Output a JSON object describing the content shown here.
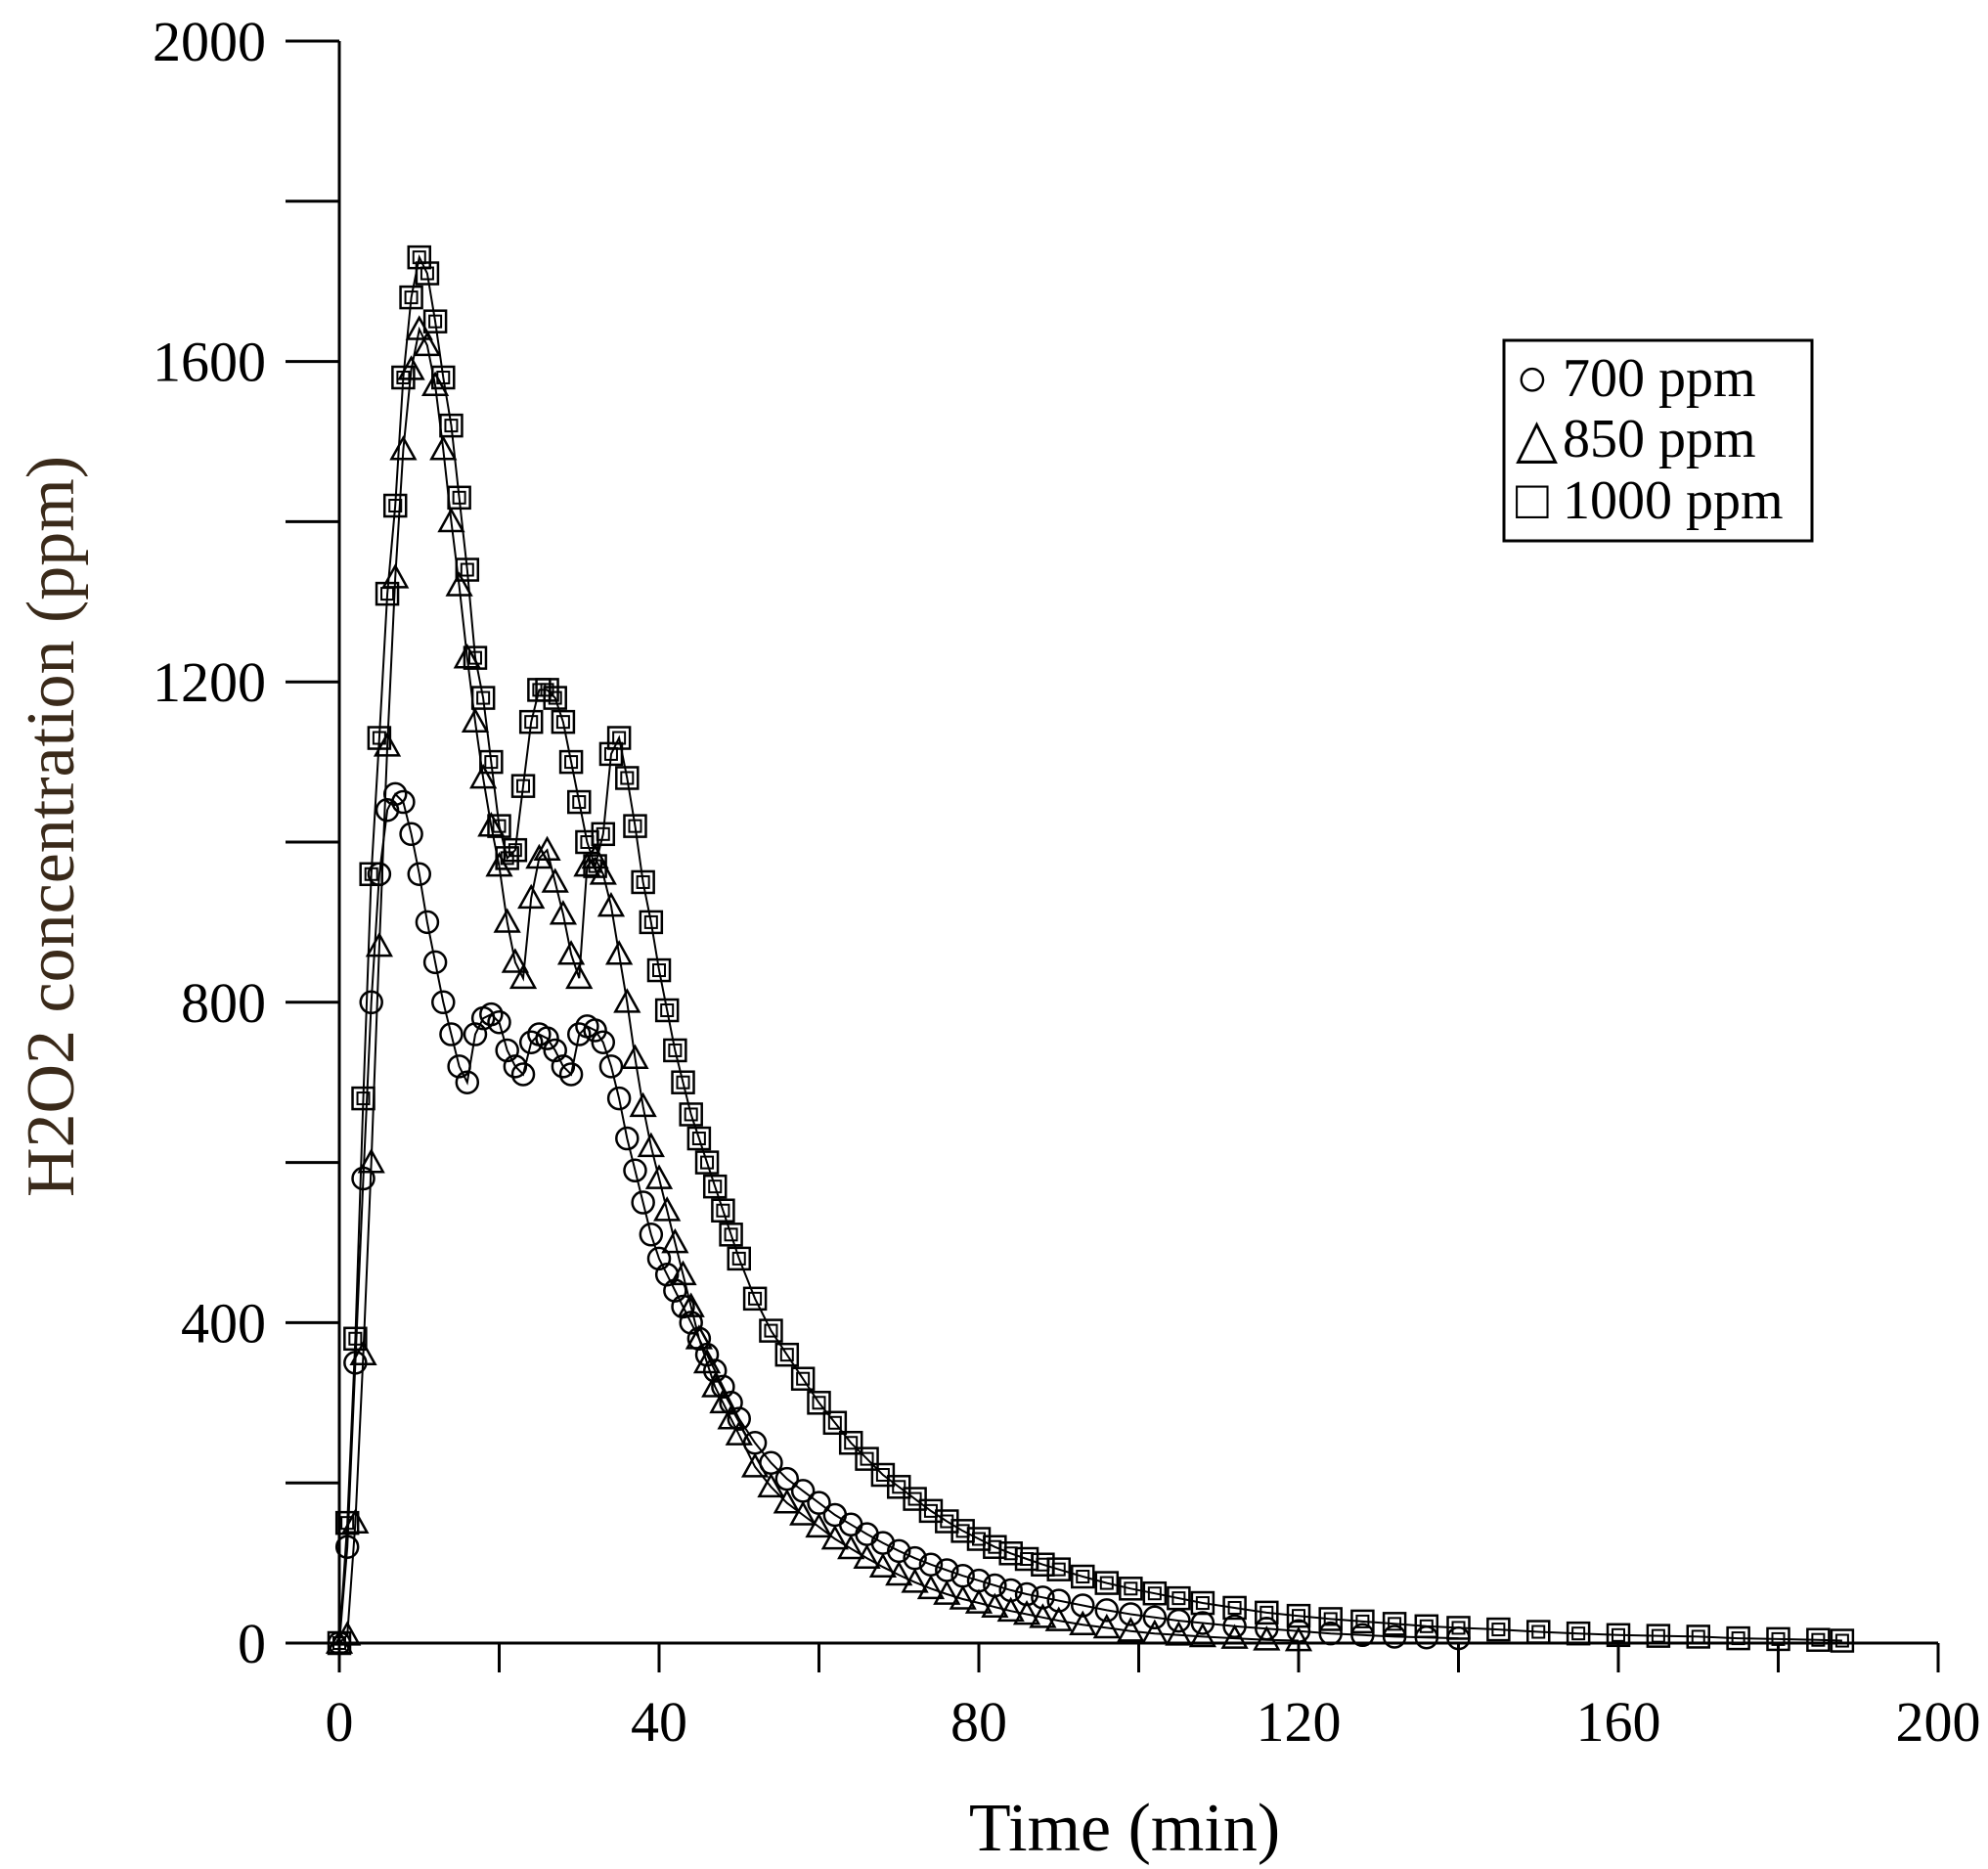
{
  "chart_data": {
    "type": "scatter",
    "title": "",
    "xlabel": "Time (min)",
    "ylabel": "H2O2 concentration (ppm)",
    "xlim": [
      0,
      200
    ],
    "ylim": [
      0,
      2000
    ],
    "x_ticks": [
      0,
      40,
      80,
      120,
      160,
      200
    ],
    "y_ticks": [
      0,
      400,
      800,
      1200,
      1600,
      2000
    ],
    "grid": false,
    "legend_position": "top-right",
    "series": [
      {
        "name": "700 ppm",
        "legend_label": "700 ppm",
        "legend_symbol": "○",
        "marker": "circle",
        "x": [
          0,
          1,
          2,
          3,
          4,
          5,
          6,
          7,
          8,
          9,
          10,
          11,
          12,
          13,
          14,
          15,
          16,
          17,
          18,
          19,
          20,
          21,
          22,
          23,
          24,
          25,
          26,
          27,
          28,
          29,
          30,
          31,
          32,
          33,
          34,
          35,
          36,
          37,
          38,
          39,
          40,
          41,
          42,
          43,
          44,
          45,
          46,
          47,
          48,
          49,
          50,
          52,
          54,
          56,
          58,
          60,
          62,
          64,
          66,
          68,
          70,
          72,
          74,
          76,
          78,
          80,
          82,
          84,
          86,
          88,
          90,
          93,
          96,
          99,
          102,
          105,
          108,
          112,
          116,
          120,
          124,
          128,
          132,
          136,
          140
        ],
        "values": [
          0,
          120,
          350,
          580,
          800,
          960,
          1040,
          1060,
          1050,
          1010,
          960,
          900,
          850,
          800,
          760,
          720,
          700,
          760,
          780,
          785,
          775,
          740,
          720,
          710,
          750,
          760,
          755,
          740,
          720,
          710,
          760,
          770,
          765,
          750,
          720,
          680,
          630,
          590,
          550,
          510,
          480,
          460,
          440,
          420,
          400,
          380,
          360,
          340,
          320,
          300,
          280,
          250,
          225,
          205,
          190,
          175,
          160,
          148,
          136,
          125,
          115,
          106,
          98,
          91,
          84,
          78,
          72,
          66,
          61,
          57,
          53,
          47,
          41,
          36,
          32,
          28,
          25,
          21,
          18,
          15,
          12,
          10,
          8,
          7,
          6
        ]
      },
      {
        "name": "850 ppm",
        "legend_label": "850 ppm",
        "legend_symbol": "△",
        "marker": "triangle",
        "x": [
          0,
          1,
          2,
          3,
          4,
          5,
          6,
          7,
          8,
          9,
          10,
          11,
          12,
          13,
          14,
          15,
          16,
          17,
          18,
          19,
          20,
          21,
          22,
          23,
          24,
          25,
          26,
          27,
          28,
          29,
          30,
          31,
          32,
          33,
          34,
          35,
          36,
          37,
          38,
          39,
          40,
          41,
          42,
          43,
          44,
          45,
          46,
          47,
          48,
          49,
          50,
          52,
          54,
          56,
          58,
          60,
          62,
          64,
          66,
          68,
          70,
          72,
          74,
          76,
          78,
          80,
          82,
          84,
          86,
          88,
          90,
          93,
          96,
          99,
          102,
          105,
          108,
          112,
          116,
          120
        ],
        "values": [
          0,
          10,
          150,
          360,
          600,
          870,
          1120,
          1330,
          1490,
          1590,
          1640,
          1620,
          1570,
          1490,
          1400,
          1320,
          1230,
          1150,
          1080,
          1020,
          970,
          900,
          850,
          830,
          930,
          980,
          990,
          950,
          910,
          860,
          830,
          970,
          980,
          960,
          920,
          860,
          800,
          730,
          670,
          620,
          580,
          540,
          500,
          460,
          420,
          380,
          350,
          320,
          300,
          280,
          260,
          220,
          195,
          175,
          160,
          145,
          130,
          118,
          106,
          95,
          85,
          76,
          68,
          61,
          55,
          50,
          45,
          40,
          36,
          32,
          28,
          23,
          19,
          15,
          12,
          10,
          8,
          6,
          4,
          3
        ]
      },
      {
        "name": "1000 ppm",
        "legend_label": "1000 ppm",
        "legend_symbol": "□",
        "marker": "square",
        "x": [
          0,
          1,
          2,
          3,
          4,
          5,
          6,
          7,
          8,
          9,
          10,
          11,
          12,
          13,
          14,
          15,
          16,
          17,
          18,
          19,
          20,
          21,
          22,
          23,
          24,
          25,
          26,
          27,
          28,
          29,
          30,
          31,
          32,
          33,
          34,
          35,
          36,
          37,
          38,
          39,
          40,
          41,
          42,
          43,
          44,
          45,
          46,
          47,
          48,
          49,
          50,
          52,
          54,
          56,
          58,
          60,
          62,
          64,
          66,
          68,
          70,
          72,
          74,
          76,
          78,
          80,
          82,
          84,
          86,
          88,
          90,
          93,
          96,
          99,
          102,
          105,
          108,
          112,
          116,
          120,
          124,
          128,
          132,
          136,
          140,
          145,
          150,
          155,
          160,
          165,
          170,
          175,
          180,
          185,
          188
        ],
        "values": [
          0,
          150,
          380,
          680,
          960,
          1130,
          1310,
          1420,
          1580,
          1680,
          1730,
          1710,
          1650,
          1580,
          1520,
          1430,
          1340,
          1230,
          1180,
          1100,
          1020,
          980,
          990,
          1070,
          1150,
          1190,
          1190,
          1180,
          1150,
          1100,
          1050,
          1000,
          970,
          1010,
          1110,
          1130,
          1080,
          1020,
          950,
          900,
          840,
          790,
          740,
          700,
          660,
          630,
          600,
          570,
          540,
          510,
          480,
          430,
          390,
          360,
          330,
          300,
          275,
          250,
          230,
          210,
          195,
          180,
          165,
          152,
          140,
          130,
          120,
          112,
          105,
          98,
          92,
          83,
          75,
          68,
          62,
          56,
          50,
          44,
          38,
          34,
          30,
          27,
          24,
          21,
          19,
          17,
          14,
          12,
          10,
          9,
          8,
          6,
          5,
          4,
          3
        ]
      }
    ]
  }
}
